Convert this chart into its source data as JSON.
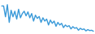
{
  "line_color": "#3a9ad9",
  "background_color": "#ffffff",
  "linewidth": 1.0,
  "values": [
    0.88,
    0.88,
    0.55,
    0.92,
    0.38,
    0.75,
    0.55,
    0.72,
    0.48,
    0.78,
    0.52,
    0.65,
    0.72,
    0.58,
    0.7,
    0.52,
    0.65,
    0.42,
    0.6,
    0.5,
    0.56,
    0.38,
    0.52,
    0.42,
    0.48,
    0.3,
    0.45,
    0.35,
    0.42,
    0.26,
    0.38,
    0.3,
    0.35,
    0.22,
    0.3,
    0.25,
    0.28,
    0.18,
    0.25,
    0.2,
    0.22,
    0.14,
    0.2,
    0.16,
    0.18,
    0.12,
    0.16,
    0.13,
    0.14,
    0.11
  ]
}
